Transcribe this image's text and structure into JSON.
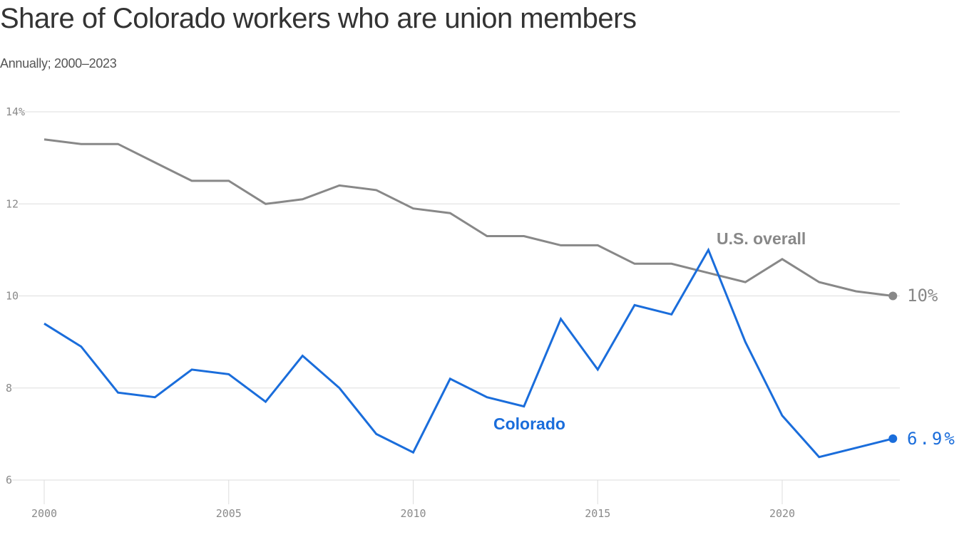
{
  "header": {
    "title": "Share of Colorado workers who are union members",
    "subtitle": "Annually; 2000–2023"
  },
  "colors": {
    "colorado": "#1a6ddb",
    "us": "#888888",
    "grid": "#dddddd",
    "axis_text": "#8a8a8a"
  },
  "chart_data": {
    "type": "line",
    "title": "Share of Colorado workers who are union members",
    "subtitle": "Annually; 2000–2023",
    "xlabel": "",
    "ylabel": "",
    "x": [
      2000,
      2001,
      2002,
      2003,
      2004,
      2005,
      2006,
      2007,
      2008,
      2009,
      2010,
      2011,
      2012,
      2013,
      2014,
      2015,
      2016,
      2017,
      2018,
      2019,
      2020,
      2021,
      2022,
      2023
    ],
    "series": [
      {
        "name": "U.S. overall",
        "color": "#888888",
        "values": [
          13.4,
          13.3,
          13.3,
          12.9,
          12.5,
          12.5,
          12.0,
          12.1,
          12.4,
          12.3,
          11.9,
          11.8,
          11.3,
          11.3,
          11.1,
          11.1,
          10.7,
          10.7,
          10.5,
          10.3,
          10.8,
          10.3,
          10.1,
          10.0
        ],
        "end_label": "10%"
      },
      {
        "name": "Colorado",
        "color": "#1a6ddb",
        "values": [
          9.4,
          8.9,
          7.9,
          7.8,
          8.4,
          8.3,
          7.7,
          8.7,
          8.0,
          7.0,
          6.6,
          8.2,
          7.8,
          7.6,
          9.5,
          8.4,
          9.8,
          9.6,
          11.0,
          9.0,
          7.4,
          6.5,
          6.7,
          6.9
        ],
        "end_label": "6.9%"
      }
    ],
    "ylim": [
      6,
      14
    ],
    "yticks": [
      {
        "value": 14,
        "label": "14%"
      },
      {
        "value": 12,
        "label": "12"
      },
      {
        "value": 10,
        "label": "10"
      },
      {
        "value": 8,
        "label": "8"
      },
      {
        "value": 6,
        "label": "6"
      }
    ],
    "xticks": [
      {
        "value": 2000,
        "label": "2000"
      },
      {
        "value": 2005,
        "label": "2005"
      },
      {
        "value": 2010,
        "label": "2010"
      },
      {
        "value": 2015,
        "label": "2015"
      },
      {
        "value": 2020,
        "label": "2020"
      }
    ],
    "grid": true,
    "legend": "inline labels",
    "annotations": [
      {
        "text": "U.S. overall",
        "series": "U.S. overall"
      },
      {
        "text": "Colorado",
        "series": "Colorado"
      }
    ]
  }
}
